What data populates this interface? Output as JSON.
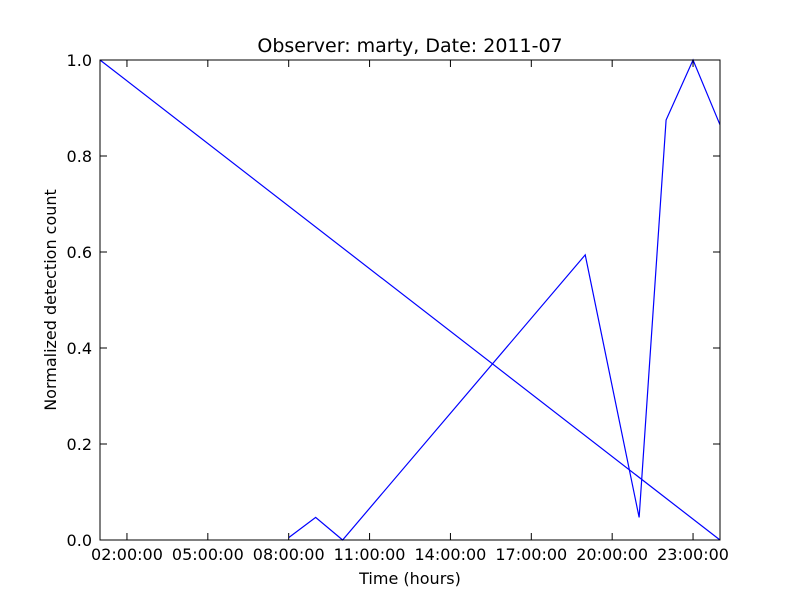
{
  "chart_data": {
    "type": "line",
    "title": "Observer: marty, Date: 2011-07",
    "xlabel": "Time (hours)",
    "ylabel": "Normalized detection count",
    "xlim": [
      "01:00:00",
      "24:00:00"
    ],
    "ylim": [
      0,
      1.0
    ],
    "x_ticks": [
      "02:00:00",
      "05:00:00",
      "08:00:00",
      "11:00:00",
      "14:00:00",
      "17:00:00",
      "20:00:00",
      "23:00:00"
    ],
    "y_ticks": [
      "0.0",
      "0.2",
      "0.4",
      "0.6",
      "0.8",
      "1.0"
    ],
    "grid": false,
    "line_color": "#0000ff",
    "series": [
      {
        "x": [
          "01:00:00",
          "24:00:00"
        ],
        "y": [
          1.0,
          0.0
        ]
      },
      {
        "x": [
          "08:00:00",
          "09:00:00",
          "10:00:00",
          "19:00:00",
          "21:00:00",
          "22:00:00",
          "23:00:00",
          "24:00:00"
        ],
        "y": [
          0.005,
          0.047,
          0.0,
          0.594,
          0.047,
          0.875,
          1.0,
          0.865
        ]
      }
    ]
  }
}
